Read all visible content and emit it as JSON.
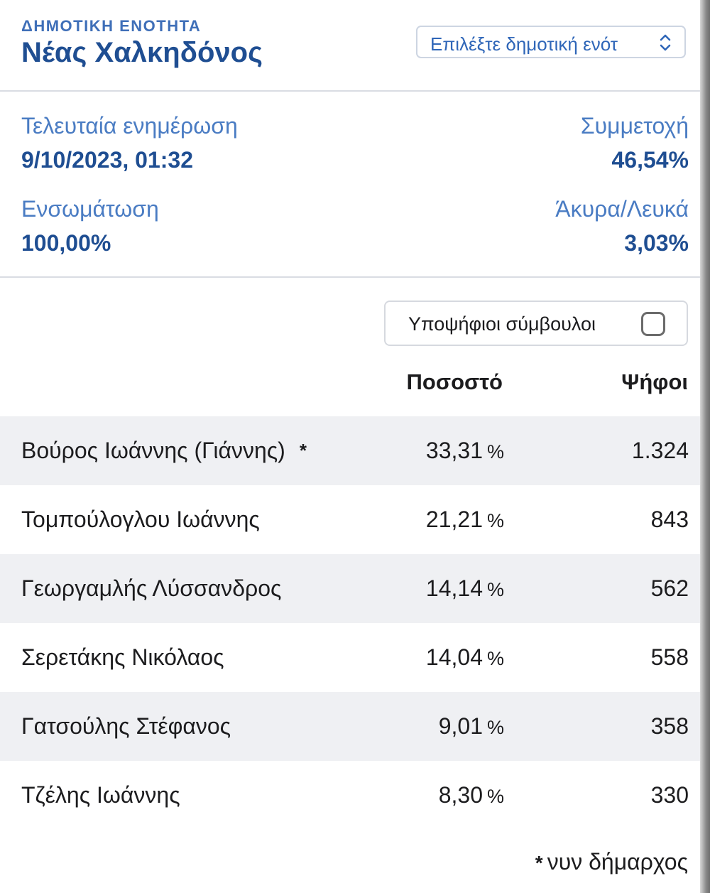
{
  "header": {
    "unit_label": "ΔΗΜΟΤΙΚΗ ΕΝΟΤΗΤΑ",
    "unit_name": "Νέας Χαλκηδόνος",
    "select_placeholder": "Επιλέξτε δημοτική ενότ"
  },
  "stats": {
    "last_update_label": "Τελευταία ενημέρωση",
    "last_update_value": "9/10/2023, 01:32",
    "turnout_label": "Συμμετοχή",
    "turnout_value": "46,54%",
    "integration_label": "Ενσωμάτωση",
    "integration_value": "100,00%",
    "invalid_label": "Άκυρα/Λευκά",
    "invalid_value": "3,03%"
  },
  "toggle": {
    "label": "Υποψήφιοι σύμβουλοι",
    "checked": false
  },
  "table": {
    "headers": {
      "percent": "Ποσοστό",
      "votes": "Ψήφοι"
    },
    "rows": [
      {
        "name": "Βούρος Ιωάννης (Γιάννης)",
        "marker": "*",
        "percent": "33,31",
        "unit": "%",
        "votes": "1.324"
      },
      {
        "name": "Τομπούλογλου Ιωάννης",
        "marker": "",
        "percent": "21,21",
        "unit": "%",
        "votes": "843"
      },
      {
        "name": "Γεωργαμλής Λύσσανδρος",
        "marker": "",
        "percent": "14,14",
        "unit": "%",
        "votes": "562"
      },
      {
        "name": "Σερετάκης Νικόλαος",
        "marker": "",
        "percent": "14,04",
        "unit": "%",
        "votes": "558"
      },
      {
        "name": "Γατσούλης Στέφανος",
        "marker": "",
        "percent": "9,01",
        "unit": "%",
        "votes": "358"
      },
      {
        "name": "Τζέλης Ιωάννης",
        "marker": "",
        "percent": "8,30",
        "unit": "%",
        "votes": "330"
      }
    ]
  },
  "footnote": {
    "marker": "*",
    "text": "νυν δήμαρχος"
  },
  "colors": {
    "accent": "#1f4e92",
    "label_blue": "#4a7cc3",
    "row_shade": "#eff0f3"
  }
}
